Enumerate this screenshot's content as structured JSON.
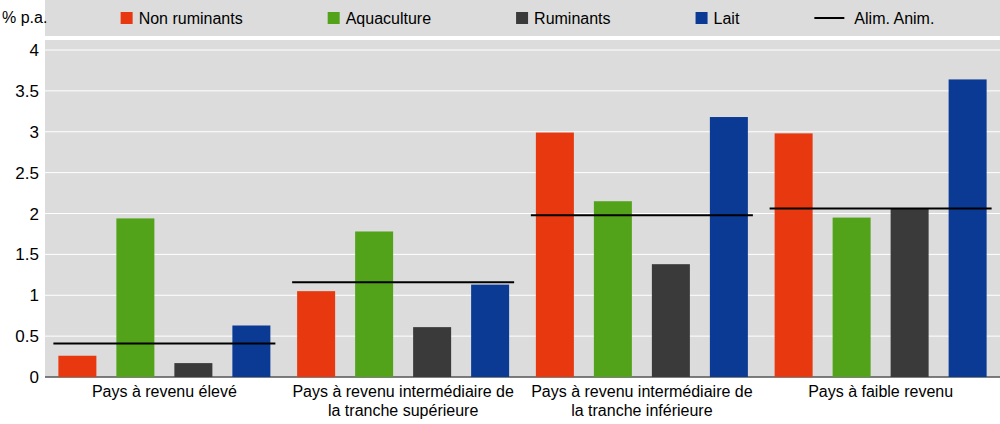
{
  "chart_data": {
    "type": "bar",
    "y_label": "% p.a.",
    "categories": [
      "Pays à revenu élevé",
      "Pays à revenu intermédiaire de la tranche supérieure",
      "Pays à revenu intermédiaire de la tranche inférieure",
      "Pays à faible revenu"
    ],
    "series": [
      {
        "name": "Non ruminants",
        "color": "#e8380f",
        "values": [
          0.26,
          1.05,
          2.99,
          2.98
        ]
      },
      {
        "name": "Aquaculture",
        "color": "#52a31a",
        "values": [
          1.94,
          1.78,
          2.15,
          1.95
        ]
      },
      {
        "name": "Ruminants",
        "color": "#3a3a3a",
        "values": [
          0.17,
          0.61,
          1.38,
          2.06
        ]
      },
      {
        "name": "Lait",
        "color": "#0a3a94",
        "values": [
          0.63,
          1.13,
          3.18,
          3.64
        ]
      },
      {
        "name": "Alim. Anim.",
        "color": "#000000",
        "type": "line",
        "values": [
          0.41,
          1.16,
          1.98,
          2.06
        ]
      }
    ],
    "ylim": [
      0,
      4
    ],
    "yticks": [
      0,
      0.5,
      1,
      1.5,
      2,
      2.5,
      3,
      3.5,
      4
    ],
    "grid": true,
    "legend": "top"
  }
}
